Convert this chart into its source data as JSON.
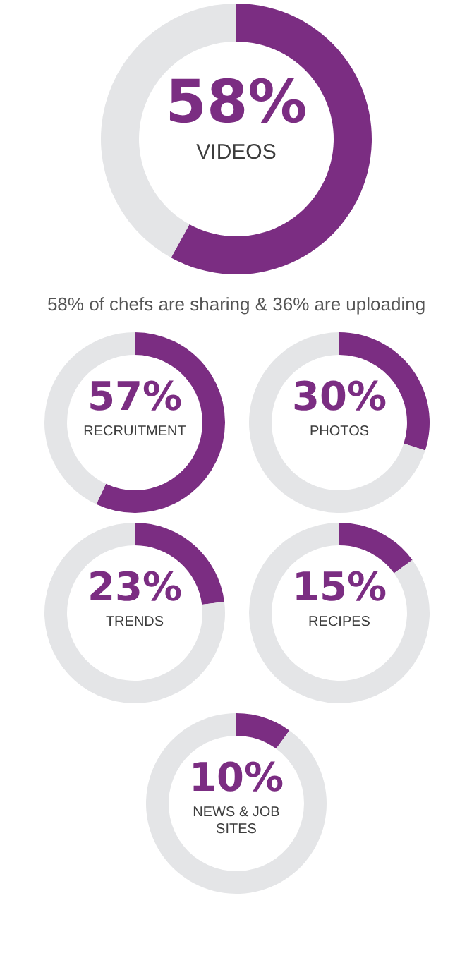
{
  "chart_data": [
    {
      "type": "donut",
      "categories": [
        "VIDEOS",
        null
      ],
      "values": [
        58,
        42
      ],
      "colors": [
        "#7b2d82",
        "#e4e5e7"
      ],
      "value_labels": [
        "58%",
        null
      ],
      "annotations": [
        "58% of chefs are sharing & 36% are uploading"
      ]
    },
    {
      "type": "donut",
      "categories": [
        "RECRUITMENT",
        null
      ],
      "values": [
        57,
        43
      ],
      "colors": [
        "#7b2d82",
        "#e4e5e7"
      ],
      "value_labels": [
        "57%",
        null
      ]
    },
    {
      "type": "donut",
      "categories": [
        "PHOTOS",
        null
      ],
      "values": [
        30,
        70
      ],
      "colors": [
        "#7b2d82",
        "#e4e5e7"
      ],
      "value_labels": [
        "30%",
        null
      ]
    },
    {
      "type": "donut",
      "categories": [
        "TRENDS",
        null
      ],
      "values": [
        23,
        77
      ],
      "colors": [
        "#7b2d82",
        "#e4e5e7"
      ],
      "value_labels": [
        "23%",
        null
      ]
    },
    {
      "type": "donut",
      "categories": [
        "RECIPES",
        null
      ],
      "values": [
        15,
        85
      ],
      "colors": [
        "#7b2d82",
        "#e4e5e7"
      ],
      "value_labels": [
        "15%",
        null
      ]
    },
    {
      "type": "donut",
      "categories": [
        "NEWS & JOB SITES",
        null
      ],
      "values": [
        10,
        90
      ],
      "colors": [
        "#7b2d82",
        "#e4e5e7"
      ],
      "value_labels": [
        "10%",
        null
      ]
    }
  ]
}
